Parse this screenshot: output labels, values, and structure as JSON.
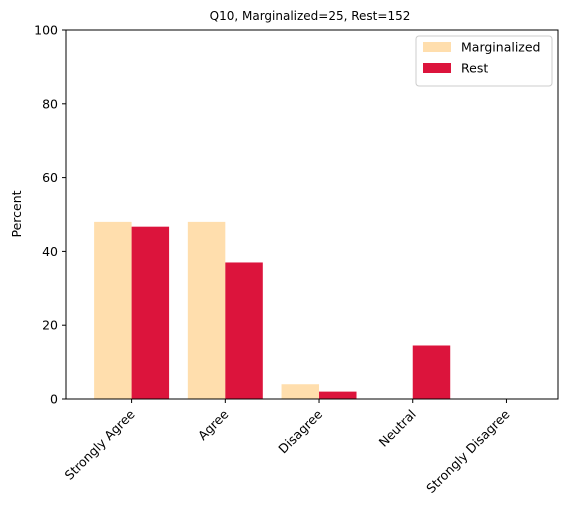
{
  "chart_data": {
    "type": "bar",
    "title": "Q10, Marginalized=25, Rest=152",
    "xlabel": "",
    "ylabel": "Percent",
    "ylim": [
      0,
      100
    ],
    "yticks": [
      0,
      20,
      40,
      60,
      80,
      100
    ],
    "categories": [
      "Strongly Agree",
      "Agree",
      "Disagree",
      "Neutral",
      "Strongly Disagree"
    ],
    "series": [
      {
        "name": "Marginalized",
        "color": "#ffdead",
        "values": [
          48.0,
          48.0,
          4.0,
          0.0,
          0.0
        ]
      },
      {
        "name": "Rest",
        "color": "#dc143c",
        "values": [
          46.7,
          37.0,
          2.0,
          14.5,
          0.0
        ]
      }
    ],
    "grid": false,
    "legend_position": "top-right"
  }
}
